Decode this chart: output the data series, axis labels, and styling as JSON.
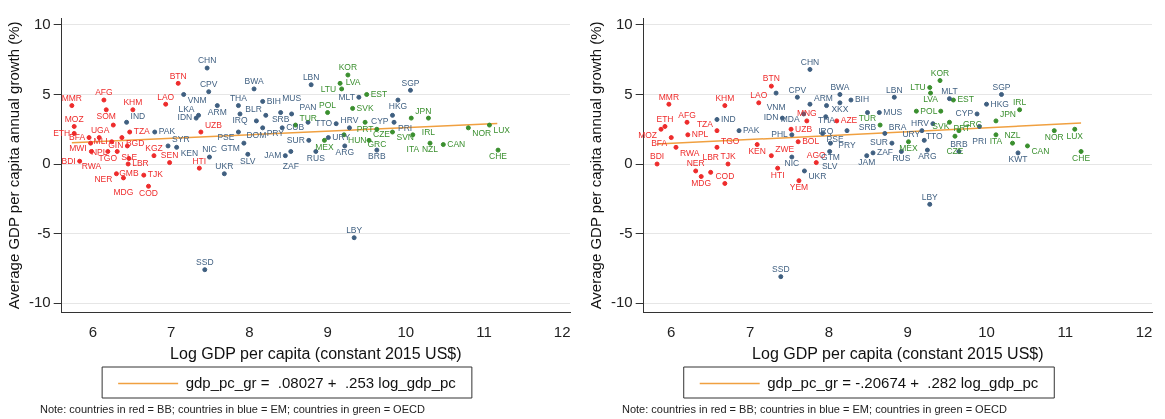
{
  "chart_data": [
    {
      "type": "scatter",
      "xlabel": "Log GDP per capita (constant 2015 US$)",
      "ylabel": "Average GDP per capita annual growth (%)",
      "xlim": [
        5.6,
        12.1
      ],
      "ylim": [
        -10.7,
        10.5
      ],
      "xticks": [
        6,
        7,
        8,
        9,
        10,
        11,
        12
      ],
      "yticks": [
        -10,
        -5,
        0,
        5,
        10
      ],
      "grid": "y",
      "legend": "bottom",
      "annotations": [
        "Note: countries in red = BB; countries in blue = EM; countries in green = OECD"
      ],
      "series": [
        {
          "marker": "circle",
          "color": "#ee2b2b",
          "x": [
            7.09,
            7.38,
            7.36,
            5.73,
            6.14,
            6.17,
            6.51,
            6.93,
            5.76,
            5.76,
            6.26,
            6.47,
            6.37,
            6.24,
            5.97,
            5.98,
            6.19,
            6.31,
            5.83,
            6.46,
            6.44,
            6.45,
            6.3,
            6.39,
            6.65,
            6.71,
            6.98,
            6.78,
            5.95,
            6.08
          ],
          "values": [
            5.8,
            2.3,
            -0.3,
            4.2,
            4.6,
            3.9,
            3.9,
            4.3,
            2.7,
            2.2,
            2.8,
            2.3,
            1.9,
            1.6,
            1.5,
            0.9,
            0.9,
            0.9,
            0.2,
            0.4,
            1.3,
            0,
            -0.7,
            -1,
            -0.8,
            -1.6,
            0.1,
            0.6,
            1.9,
            1.9
          ],
          "value_labels": [
            "BTN",
            "UZB",
            "HTI",
            "MMR",
            "AFG",
            "SOM",
            "KHM",
            "LAO",
            "MOZ",
            "ETH",
            "UGA",
            "TZA",
            "BGD",
            "MLI",
            "MWI",
            "RWA",
            "TGO",
            "SLE",
            "BDI",
            "GMB",
            "GIN",
            "LBR",
            "NER",
            "MDG",
            "TJK",
            "COD",
            "SEN",
            "KGZ",
            "BFA",
            "NPL"
          ]
        },
        {
          "marker": "circle",
          "color": "#3f5f80",
          "x": [
            7.46,
            7.16,
            7.48,
            8.06,
            8.79,
            9.4,
            10.06,
            9.9,
            9.83,
            9.85,
            9.11,
            9.28,
            9.22,
            9.63,
            8.85,
            9.01,
            8.76,
            8.75,
            8.53,
            8.46,
            8.17,
            7.86,
            7.59,
            7.88,
            8.21,
            8.4,
            8.54,
            8.09,
            8.17,
            8.42,
            7.32,
            7.35,
            7.86,
            7.93,
            7.98,
            7.49,
            7.68,
            9.34,
            7.43,
            6.43,
            6.79,
            6.96,
            7.07
          ],
          "values": [
            6.9,
            5,
            5.2,
            5.4,
            5.7,
            4.8,
            5.3,
            4.6,
            3.5,
            3,
            2.9,
            2.6,
            1.3,
            1,
            0.9,
            1.9,
            1.7,
            3,
            0.9,
            0.6,
            4.5,
            4.2,
            4.2,
            3.6,
            3.5,
            3.7,
            3.6,
            3.1,
            2.6,
            2.6,
            3.3,
            3.5,
            2.3,
            1.5,
            0.7,
            0.5,
            -0.7,
            -5.3,
            -7.6,
            3,
            2.3,
            1.3,
            1.2
          ],
          "value_labels": [
            "CHN",
            "VNM",
            "CPV",
            "BWA",
            "LBN",
            "MLT",
            "SGP",
            "HKG",
            "CYP",
            "PRI",
            "TTO",
            "HRV",
            "ARG",
            "BRB",
            "RUS",
            "URY",
            "SUR",
            "PAN",
            "ZAF",
            "JAM",
            "BIH",
            "THA",
            "ARM",
            "IRQ",
            "BLR",
            "SRB",
            "MUS",
            "DOM",
            "PRY",
            "CUB",
            "IDN",
            "LKA",
            "PSE",
            "GTM",
            "SLV",
            "NIC",
            "UKR",
            "LBY",
            "SSD",
            "IND",
            "PAK",
            "SYR",
            "KEN"
          ]
        },
        {
          "marker": "circle",
          "color": "#3a8f2e",
          "x": [
            9.26,
            9.16,
            9.18,
            9.5,
            9.32,
            9,
            10.07,
            10.29,
            9.48,
            9.63,
            9.83,
            9.21,
            9.53,
            8.96,
            8.59,
            10.09,
            10.31,
            10.48,
            10.8,
            11.07,
            11.18
          ],
          "values": [
            6.4,
            5.8,
            5.4,
            5,
            4,
            3.7,
            3.3,
            3.3,
            3,
            2.5,
            2.3,
            2.1,
            1.7,
            1.7,
            2.8,
            2.1,
            1.5,
            1.4,
            2.6,
            2.8,
            1
          ],
          "value_labels": [
            "KOR",
            "LTU",
            "LVA",
            "EST",
            "SVK",
            "POL",
            "JPN",
            "IRL",
            "PRT",
            "GRC",
            "SVN",
            "HUN",
            "CZE",
            "MEX",
            "TUR",
            "ITA",
            "NZL",
            "CAN",
            "NOR",
            "LUX",
            "CHE"
          ]
        },
        {
          "type": "line",
          "marker": "none",
          "name": "gdp_pc_gr =  .08027 +  .253 log_gdp_pc",
          "color": "#f0a040",
          "x": [
            5.73,
            11.17
          ],
          "values": [
            1.53,
            2.91
          ]
        }
      ]
    },
    {
      "type": "scatter",
      "xlabel": "Log GDP per capita (constant 2015 US$)",
      "ylabel": "Average GDP per capita annual growth (%)",
      "xlim": [
        5.65,
        12.1
      ],
      "ylim": [
        -10.7,
        10.5
      ],
      "xticks": [
        6,
        7,
        8,
        9,
        10,
        11,
        12
      ],
      "yticks": [
        -10,
        -5,
        0,
        5,
        10
      ],
      "grid": "y",
      "legend": "bottom",
      "annotations": [
        "Note: countries in red = BB; countries in blue = EM; countries in green = OECD"
      ],
      "series": [
        {
          "marker": "circle",
          "color": "#ee2b2b",
          "x": [
            7.27,
            7.35,
            7.62,
            7.84,
            6.68,
            6.72,
            6.38,
            6.31,
            6.5,
            5.82,
            6.06,
            5.97,
            6.68,
            7.11,
            5.92,
            5.87,
            6.2,
            6.21,
            6,
            6.58,
            6.58,
            7.09,
            7.27,
            7.52,
            7.61,
            7.72,
            8.1
          ],
          "values": [
            5.6,
            -0.3,
            -1.2,
            0.1,
            -1.4,
            0,
            -0.9,
            -0.5,
            -0.6,
            0,
            1.2,
            4.3,
            4.2,
            4.4,
            2.7,
            2.5,
            3,
            2.1,
            1.9,
            2.4,
            1.2,
            1.4,
            0.6,
            2.5,
            1.6,
            3.1,
            3.1
          ],
          "value_labels": [
            "BTN",
            "HTI",
            "YEM",
            "AGO",
            "COD",
            "TJK",
            "MDG",
            "NER",
            "LBR",
            "BDI",
            "RWA",
            "MMR",
            "KHM",
            "LAO",
            "ETH",
            "MOZ",
            "AFG",
            "NPL",
            "BFA",
            "TZA",
            "TGO",
            "KEN",
            "ZWE",
            "UZB",
            "BOL",
            "MNG",
            "AZE"
          ]
        },
        {
          "marker": "circle",
          "color": "#3f5f80",
          "x": [
            7.76,
            7.33,
            7.6,
            8.14,
            8.14,
            8.28,
            7.76,
            7.97,
            8.83,
            9.53,
            10.19,
            10,
            9.88,
            9.32,
            9.91,
            9.18,
            9.21,
            9.25,
            9.65,
            8.92,
            8.8,
            10.4,
            8.49,
            8.64,
            7.96,
            7.68,
            7.41,
            6.58,
            6.86,
            8.23,
            7.92,
            7.53,
            8.02,
            8.01,
            7.53,
            7.69,
            9.28,
            7.39,
            8.48,
            8.56,
            8.71
          ],
          "values": [
            6.8,
            5.1,
            4.8,
            5,
            4.4,
            4.6,
            4.3,
            4.2,
            4.8,
            4.7,
            5,
            4.3,
            3.6,
            2.9,
            2.7,
            2.4,
            1.7,
            1,
            0.9,
            0.9,
            1.5,
            0.8,
            3.7,
            3.7,
            3.4,
            3.6,
            3.3,
            3.2,
            2.4,
            2.4,
            2.2,
            2.1,
            1.5,
            0.9,
            0.5,
            -0.5,
            -2.9,
            -8.1,
            0.6,
            0.8,
            2.2
          ],
          "value_labels": [
            "CHN",
            "VNM",
            "CPV",
            "BWA",
            "XKX",
            "BIH",
            "ARM",
            "THA",
            "LBN",
            "MLT",
            "SGP",
            "HKG",
            "CYP",
            "HRV",
            "PRI",
            "TTO",
            "URY",
            "ARG",
            "BRB",
            "RUS",
            "SUR",
            "KWT",
            "SRB",
            "MUS",
            "IRQ",
            "MDA",
            "IDN",
            "IND",
            "PAK",
            "PRY",
            "PSE",
            "PHL",
            "GTM",
            "SLV",
            "NIC",
            "UKR",
            "LBY",
            "SSD",
            "JAM",
            "ZAF",
            "BRA"
          ]
        },
        {
          "marker": "circle",
          "color": "#3a8f2e",
          "x": [
            9.41,
            9.28,
            9.29,
            9.58,
            9.11,
            9.42,
            10.42,
            10.12,
            9.53,
            9.65,
            9.6,
            9.01,
            10.86,
            11.12,
            11.2,
            10.33,
            10.52,
            10.12,
            8.65
          ],
          "values": [
            6,
            5.5,
            5.1,
            4.6,
            3.8,
            3.8,
            3.9,
            3.1,
            3,
            2.4,
            2,
            1.6,
            2.4,
            2.5,
            0.9,
            1.5,
            1.3,
            2.1,
            2.8
          ],
          "value_labels": [
            "KOR",
            "LTU",
            "LVA",
            "EST",
            "POL",
            "SVK",
            "IRL",
            "JPN",
            "PRT",
            "GRC",
            "CZE",
            "MEX",
            "NOR",
            "LUX",
            "CHE",
            "NZL",
            "CAN",
            "ITA",
            "TUR"
          ]
        },
        {
          "type": "line",
          "marker": "none",
          "name": "gdp_pc_gr = -.20674 +  .282 log_gdp_pc",
          "color": "#f0a040",
          "x": [
            5.82,
            11.2
          ],
          "values": [
            1.43,
            2.95
          ]
        }
      ]
    }
  ]
}
